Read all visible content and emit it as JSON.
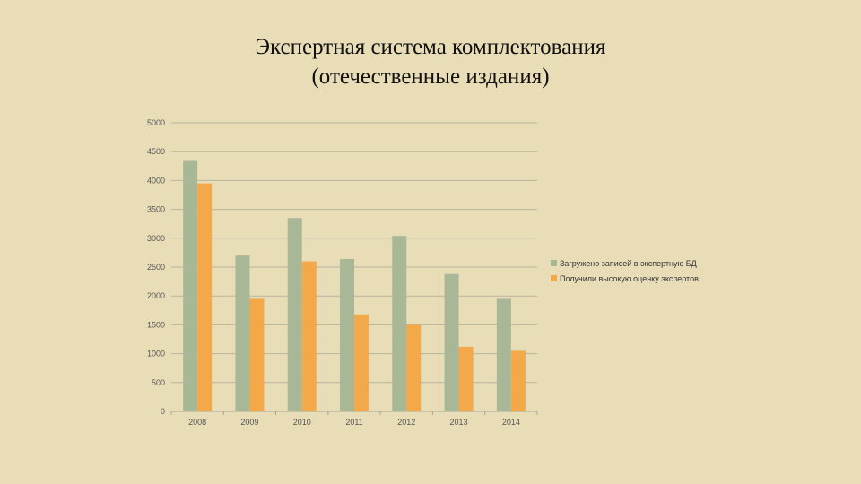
{
  "slide": {
    "title_line1": "Экспертная система комплектования",
    "title_line2": "(отечественные издания)"
  },
  "colors": {
    "background": "#e9ddb8",
    "series_loaded": "#a8b795",
    "series_rated": "#f3a84a",
    "gridline": "#b8b49d"
  },
  "chart_data": {
    "type": "bar",
    "title": "",
    "xlabel": "",
    "ylabel": "",
    "ylim": [
      0,
      5000
    ],
    "yticks": [
      0,
      500,
      1000,
      1500,
      2000,
      2500,
      3000,
      3500,
      4000,
      4500,
      5000
    ],
    "grid": true,
    "legend_position": "right",
    "categories": [
      "2008",
      "2009",
      "2010",
      "2011",
      "2012",
      "2013",
      "2014"
    ],
    "series": [
      {
        "name": "Загружено записей в экспертную БД",
        "values": [
          4340,
          2700,
          3350,
          2640,
          3040,
          2380,
          1950
        ]
      },
      {
        "name": "Получили высокую оценку экспертов",
        "values": [
          3950,
          1950,
          2600,
          1680,
          1500,
          1120,
          1050
        ]
      }
    ]
  }
}
